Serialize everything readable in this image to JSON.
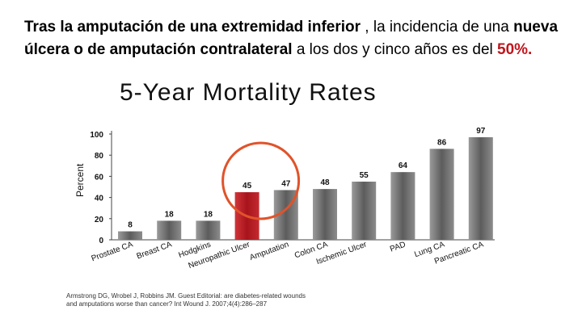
{
  "intro": {
    "part1": "Tras la amputación de una extremidad inferior",
    "part2": " , la incidencia de una ",
    "part3": "nueva úlcera o de amputación contralateral",
    "part4": "  a los dos y cinco años es del ",
    "part5": "50%."
  },
  "colors": {
    "highlight_text": "#c0161c",
    "bar_dark": "#6e6e6e",
    "bar_highlight": "#b41a22",
    "circle": "#e0532a"
  },
  "chart_data": {
    "type": "bar",
    "title": "5-Year Mortality Rates",
    "ylabel": "Percent",
    "xlabel": "",
    "ylim": [
      0,
      100
    ],
    "yticks": [
      0,
      20,
      40,
      60,
      80,
      100
    ],
    "grid": false,
    "categories": [
      "Prostate CA",
      "Breast CA",
      "Hodgkins",
      "Neuropathic Ulcer",
      "Amputation",
      "Colon CA",
      "Ischemic Ulcer",
      "PAD",
      "Lung CA",
      "Pancreatic CA"
    ],
    "values": [
      8,
      18,
      18,
      45,
      47,
      48,
      55,
      64,
      86,
      97
    ],
    "highlight_index": 3,
    "circled_index": 3
  },
  "citation": {
    "line1": "Armstrong DG, Wrobel J, Robbins JM. Guest Editorial: are diabetes-related wounds",
    "line2": "and amputations worse than cancer? Int Wound J. 2007;4(4):286–287"
  }
}
